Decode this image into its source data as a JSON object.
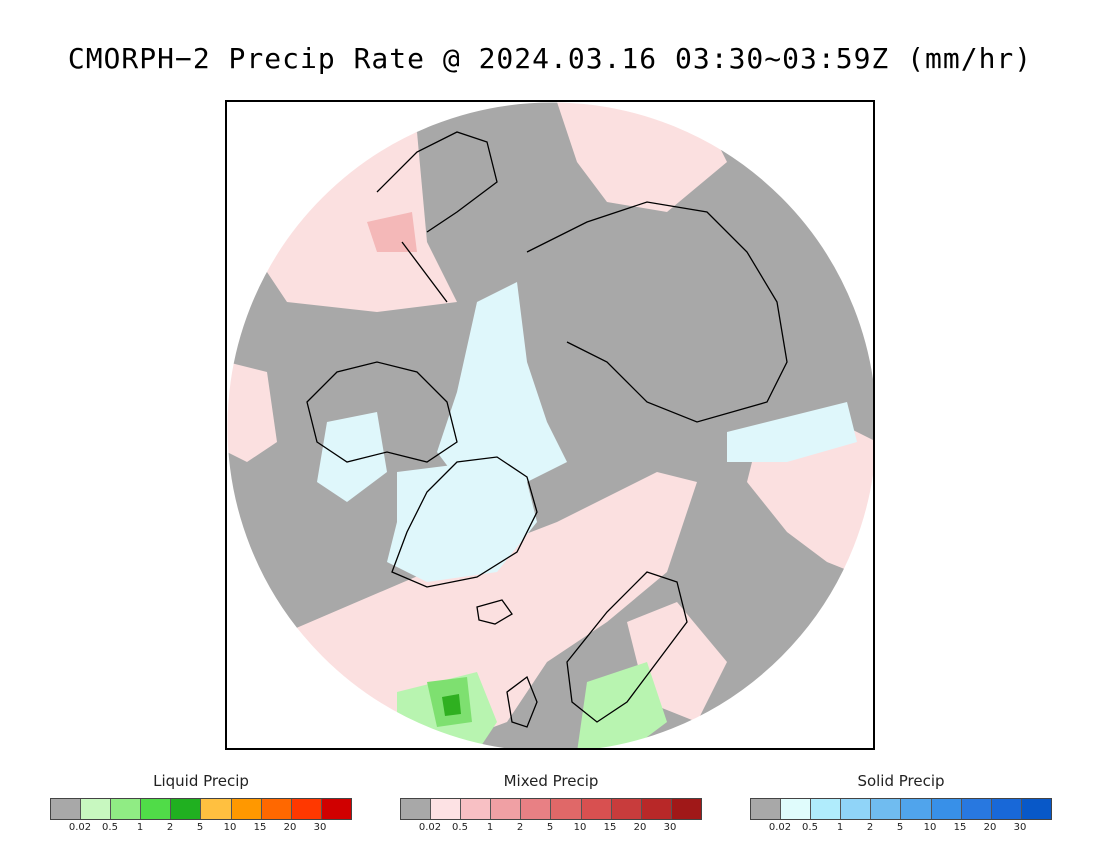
{
  "title": "CMORPH−2 Precip Rate @ 2024.03.16 03:30~03:59Z (mm/hr)",
  "map": {
    "colors": {
      "no_precip": "#a8a8a8",
      "ocean_edge": "#ffffff",
      "mixed_light": "#fbe0e0",
      "mixed_strong": "#f4b8b8",
      "solid_light": "#dff7fb",
      "liquid_light": "#b8f4b0",
      "liquid_mid": "#7ee070",
      "liquid_dark": "#2fb020",
      "coast": "#000000"
    }
  },
  "legends": [
    {
      "title": "Liquid Precip",
      "colors": [
        "#a8a8a8",
        "#c8f8c0",
        "#90ec84",
        "#50dc48",
        "#20b020",
        "#ffc040",
        "#ff9800",
        "#ff6800",
        "#ff3800",
        "#d00000"
      ],
      "ticks": [
        "0.02",
        "0.5",
        "1",
        "2",
        "5",
        "10",
        "15",
        "20",
        "30"
      ]
    },
    {
      "title": "Mixed Precip",
      "colors": [
        "#a8a8a8",
        "#fde2e4",
        "#f8c0c4",
        "#f0a0a4",
        "#e88084",
        "#e06868",
        "#d85050",
        "#c83c3c",
        "#b82828",
        "#a01818"
      ],
      "ticks": [
        "0.02",
        "0.5",
        "1",
        "2",
        "5",
        "10",
        "15",
        "20",
        "30"
      ]
    },
    {
      "title": "Solid Precip",
      "colors": [
        "#a8a8a8",
        "#e0fcfc",
        "#b0ecfc",
        "#90d4f8",
        "#70bcf0",
        "#50a4ec",
        "#3890e8",
        "#2878e0",
        "#1868d8",
        "#0858c8"
      ],
      "ticks": [
        "0.02",
        "0.5",
        "1",
        "2",
        "5",
        "10",
        "15",
        "20",
        "30"
      ]
    }
  ]
}
